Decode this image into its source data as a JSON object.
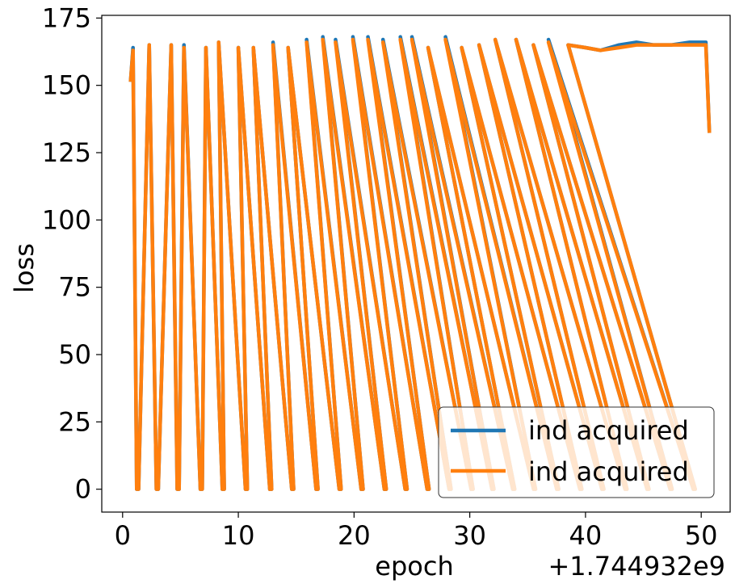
{
  "chart_data": {
    "type": "line",
    "title": "",
    "xlabel": "epoch",
    "ylabel": "loss",
    "x_offset_label": "+1.744932e9",
    "xlim": [
      -1.8,
      52.5
    ],
    "ylim": [
      -8.5,
      176
    ],
    "xticks": [
      0,
      10,
      20,
      30,
      40,
      50
    ],
    "yticks": [
      0,
      25,
      50,
      75,
      100,
      125,
      150,
      175
    ],
    "legend": {
      "placement": "lower-right"
    },
    "series": [
      {
        "name": "ind acquired",
        "color": "#1f77b4",
        "start": [
          0.7,
          152
        ],
        "cycle_minima_x": [
          1.3,
          3.0,
          4.8,
          6.8,
          8.7,
          10.7,
          12.8,
          14.7,
          16.8,
          18.8,
          20.7,
          22.7,
          24.5,
          26.4,
          28.3,
          30.2,
          32.0,
          33.8,
          35.6,
          37.6,
          39.6,
          41.5,
          43.5,
          45.4,
          47.4,
          49.4
        ],
        "cycle_peaks": [
          [
            0.9,
            164
          ],
          [
            2.3,
            165
          ],
          [
            4.2,
            165
          ],
          [
            5.3,
            165
          ],
          [
            7.2,
            164
          ],
          [
            8.3,
            166
          ],
          [
            10.0,
            164
          ],
          [
            11.3,
            164
          ],
          [
            13.0,
            166
          ],
          [
            14.3,
            164
          ],
          [
            15.9,
            167
          ],
          [
            17.3,
            168
          ],
          [
            18.4,
            167
          ],
          [
            19.9,
            168
          ],
          [
            21.2,
            168
          ],
          [
            22.5,
            167
          ],
          [
            24.0,
            168
          ],
          [
            25.0,
            168
          ],
          [
            26.4,
            164
          ],
          [
            27.9,
            168
          ],
          [
            29.3,
            164
          ],
          [
            30.8,
            165
          ],
          [
            32.2,
            167
          ],
          [
            34.0,
            167
          ],
          [
            35.5,
            165
          ],
          [
            36.8,
            167
          ],
          [
            38.5,
            165
          ],
          [
            40.0,
            164
          ],
          [
            41.3,
            163
          ],
          [
            42.9,
            165
          ],
          [
            44.4,
            166
          ],
          [
            45.9,
            165
          ],
          [
            47.4,
            165
          ],
          [
            49.0,
            166
          ],
          [
            50.4,
            166
          ]
        ],
        "end": [
          50.7,
          133
        ]
      },
      {
        "name": "ind acquired",
        "color": "#ff7f0e",
        "start": [
          0.7,
          152
        ],
        "cycle_minima_x": [
          1.3,
          3.0,
          4.8,
          6.8,
          8.7,
          10.7,
          12.8,
          14.7,
          16.8,
          18.8,
          20.7,
          22.7,
          24.5,
          26.4,
          28.3,
          30.2,
          32.0,
          33.8,
          35.6,
          37.6,
          39.6,
          41.5,
          43.5,
          45.4,
          47.4,
          49.4
        ],
        "cycle_peaks": [
          [
            0.9,
            163
          ],
          [
            2.3,
            165
          ],
          [
            4.2,
            165
          ],
          [
            5.3,
            164
          ],
          [
            7.2,
            164
          ],
          [
            8.3,
            166
          ],
          [
            10.0,
            164
          ],
          [
            11.3,
            164
          ],
          [
            13.0,
            165
          ],
          [
            14.3,
            164
          ],
          [
            15.9,
            166
          ],
          [
            17.3,
            167
          ],
          [
            18.4,
            166
          ],
          [
            19.9,
            167
          ],
          [
            21.2,
            167
          ],
          [
            22.5,
            166
          ],
          [
            24.0,
            167
          ],
          [
            25.0,
            167
          ],
          [
            26.4,
            164
          ],
          [
            27.9,
            167
          ],
          [
            29.3,
            164
          ],
          [
            30.8,
            165
          ],
          [
            32.2,
            167
          ],
          [
            34.0,
            167
          ],
          [
            35.5,
            165
          ],
          [
            36.8,
            166
          ],
          [
            38.5,
            165
          ],
          [
            40.0,
            164
          ],
          [
            41.3,
            163
          ],
          [
            42.9,
            164
          ],
          [
            44.4,
            165
          ],
          [
            45.9,
            165
          ],
          [
            47.4,
            165
          ],
          [
            49.0,
            165
          ],
          [
            50.4,
            165
          ]
        ],
        "end": [
          50.7,
          133
        ]
      }
    ]
  }
}
